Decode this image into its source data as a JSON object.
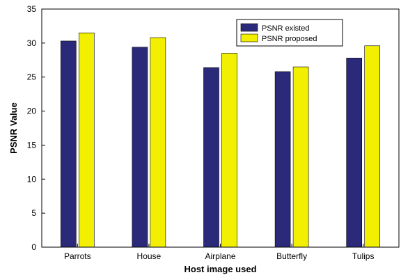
{
  "chart_data": {
    "type": "bar",
    "title": "",
    "xlabel": "Host image used",
    "ylabel": "PSNR Value",
    "ylim": [
      0,
      35
    ],
    "yticks": [
      "0",
      "5",
      "10",
      "15",
      "20",
      "25",
      "30",
      "35"
    ],
    "categories": [
      "Parrots",
      "House",
      "Airplane",
      "Butterfly",
      "Tulips"
    ],
    "series": [
      {
        "name": "PSNR existed",
        "values": [
          30.3,
          29.4,
          26.4,
          25.8,
          27.8
        ],
        "color": "#2b2a7a"
      },
      {
        "name": "PSNR proposed",
        "values": [
          31.5,
          30.8,
          28.5,
          26.5,
          29.6
        ],
        "color": "#f2f000"
      }
    ],
    "grid": false,
    "legend_position": "top-right"
  }
}
